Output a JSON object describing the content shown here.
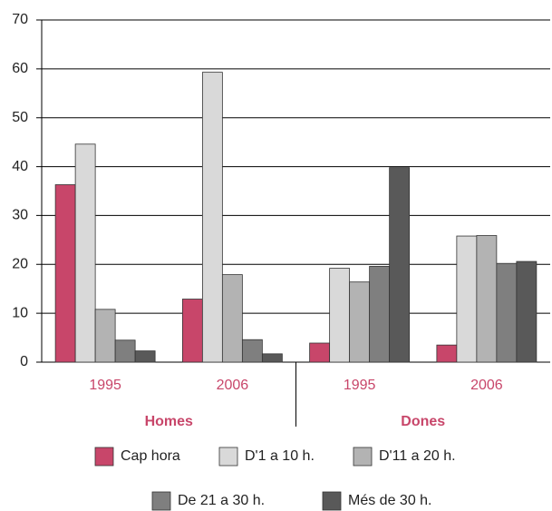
{
  "chart_data": {
    "type": "bar",
    "categories": [
      "1995",
      "2006",
      "1995",
      "2006"
    ],
    "groups": [
      "Homes",
      "Dones"
    ],
    "series": [
      {
        "name": "Cap hora",
        "color": "#c8466a",
        "values": [
          36.3,
          12.9,
          3.9,
          3.5
        ]
      },
      {
        "name": "D'1 a 10 h.",
        "color": "#d9d9d9",
        "values": [
          44.6,
          59.3,
          19.2,
          25.8
        ]
      },
      {
        "name": "D'11 a 20 h.",
        "color": "#b3b3b3",
        "values": [
          10.8,
          17.9,
          16.4,
          25.9
        ]
      },
      {
        "name": "De 21 a 30 h.",
        "color": "#7f7f7f",
        "values": [
          4.5,
          4.6,
          19.6,
          20.2
        ]
      },
      {
        "name": "Més de 30 h.",
        "color": "#595959",
        "values": [
          2.3,
          1.7,
          39.8,
          20.6
        ]
      }
    ],
    "ylim": [
      0,
      70
    ],
    "yticks": [
      0,
      10,
      20,
      30,
      40,
      50,
      60,
      70
    ],
    "grid": true
  }
}
